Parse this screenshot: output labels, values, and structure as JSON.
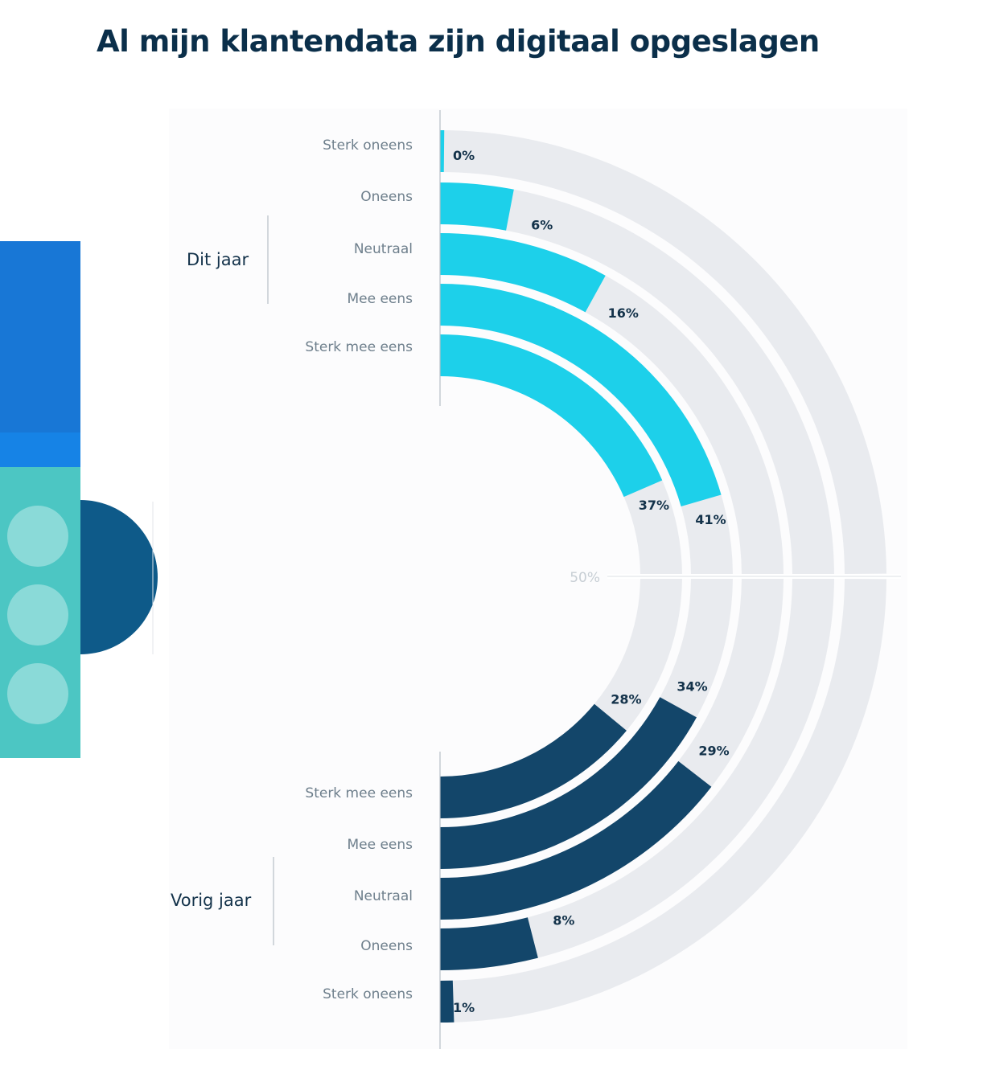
{
  "title": "Al mijn klantendata zijn digitaal opgeslagen",
  "colors": {
    "this_year": "#1dd0ea",
    "last_year": "#13466a",
    "track": "#e9ebef",
    "background": "#fcfcfd"
  },
  "chart_data": {
    "type": "radial-bar",
    "scale_label": "50%",
    "max": 50,
    "categories": [
      "Sterk oneens",
      "Oneens",
      "Neutraal",
      "Mee eens",
      "Sterk mee eens"
    ],
    "series": [
      {
        "name": "Dit jaar",
        "values": [
          0,
          6,
          16,
          41,
          37
        ],
        "labels": [
          "0%",
          "6%",
          "16%",
          "41%",
          "37%"
        ]
      },
      {
        "name": "Vorig jaar",
        "values": [
          1,
          8,
          29,
          34,
          28
        ],
        "labels": [
          "1%",
          "8%",
          "29%",
          "34%",
          "28%"
        ]
      }
    ]
  }
}
